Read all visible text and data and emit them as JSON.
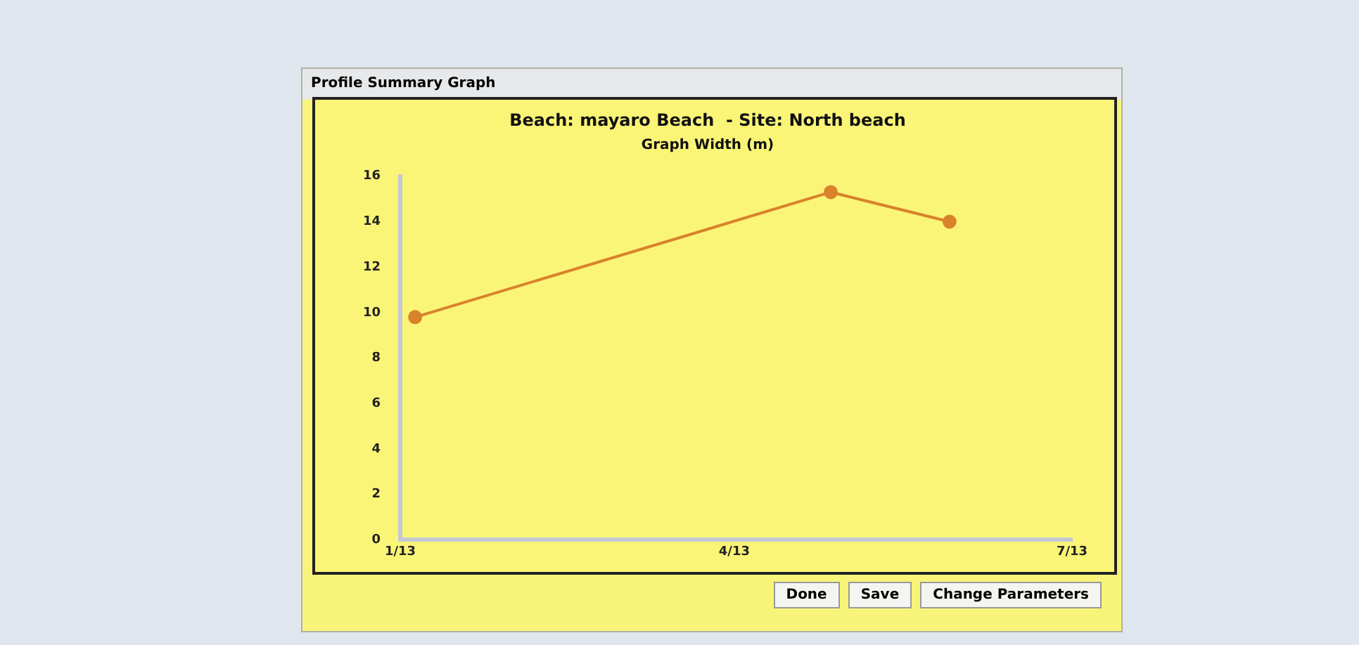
{
  "chart_data": {
    "type": "line",
    "title": "Beach: mayaro Beach  - Site: North beach",
    "subtitle": "Graph Width (m)",
    "x": [
      "2013-01-05",
      "2013-04-27",
      "2013-05-29"
    ],
    "series": [
      {
        "color": "#d9822b",
        "values": [
          9.8,
          15.3,
          14.0
        ]
      }
    ],
    "xlim": [
      "2013-01",
      "2013-07"
    ],
    "xticks": [
      {
        "value": "2013-01",
        "label": "1/13"
      },
      {
        "value": "2013-04",
        "label": "4/13"
      },
      {
        "value": "2013-07",
        "label": "7/13"
      }
    ],
    "ylim": [
      0,
      16
    ],
    "yticks": [
      0,
      2,
      4,
      6,
      8,
      10,
      12,
      14,
      16
    ],
    "grid": false,
    "legend": false,
    "marker": "circle",
    "line_style": "solid",
    "annotations": [
      "Profile Summary Graph",
      "Done",
      "Save",
      "Change Parameters"
    ]
  }
}
